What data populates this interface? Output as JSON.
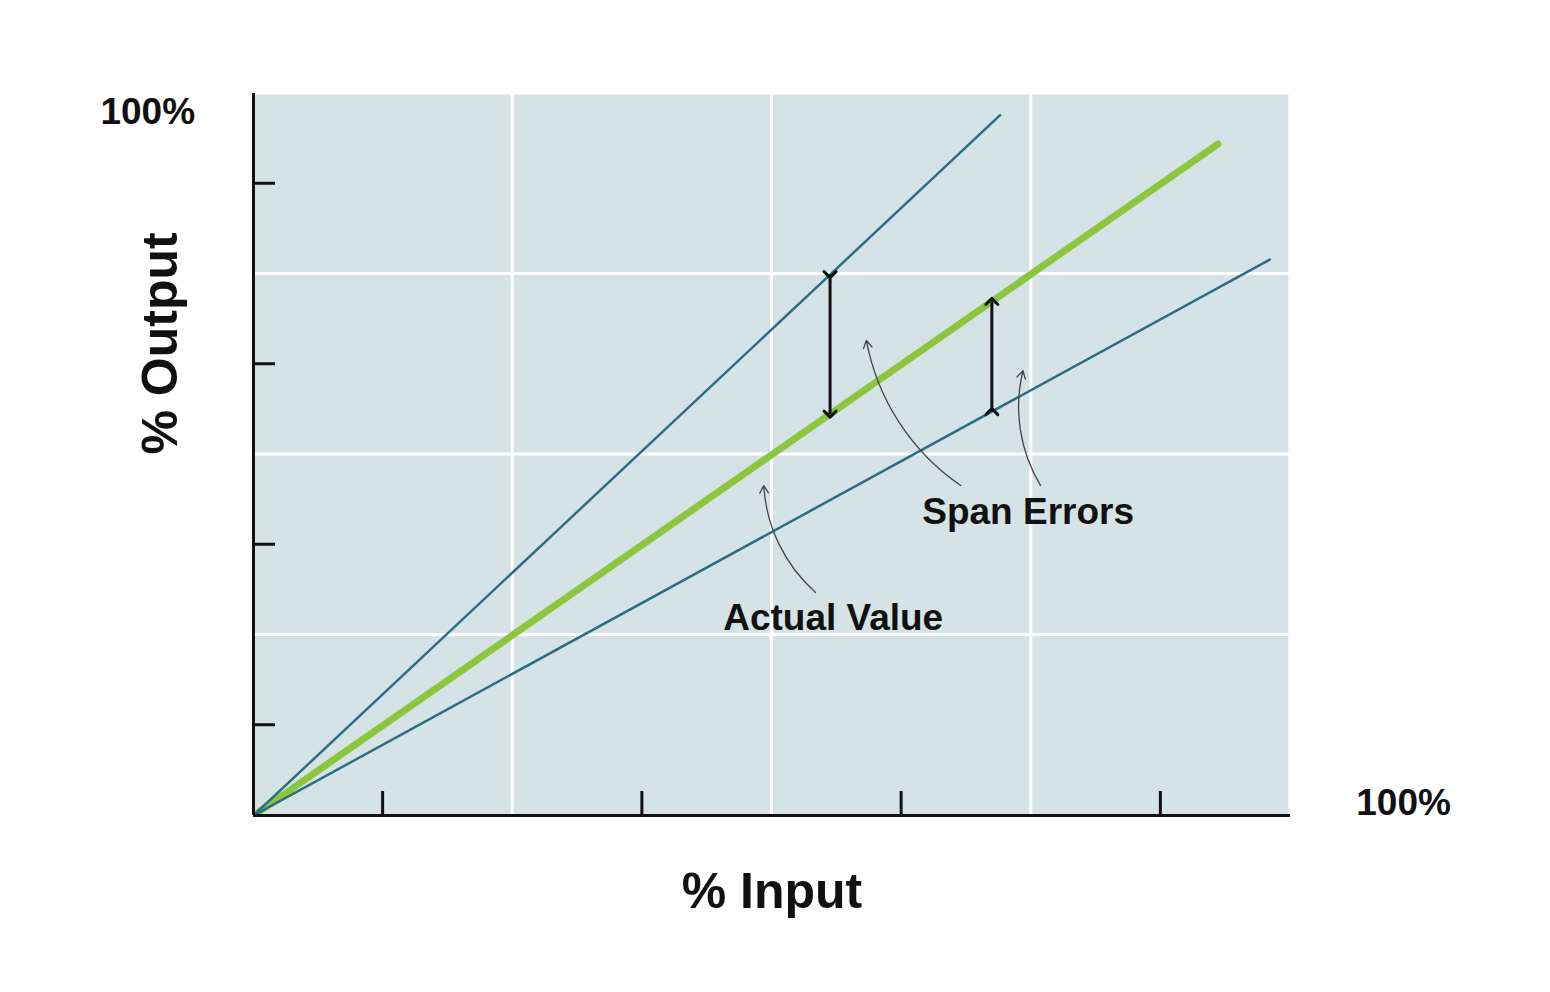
{
  "chart_data": {
    "type": "line",
    "x_label": "% Input",
    "y_label": "% Output",
    "xlim": [
      0,
      100
    ],
    "ylim": [
      0,
      100
    ],
    "xticks": [
      12.5,
      25,
      37.5,
      50,
      62.5,
      75,
      87.5,
      100
    ],
    "yticks": [
      12.5,
      25,
      37.5,
      50,
      62.5,
      75,
      87.5,
      100
    ],
    "tick_labels": false,
    "grid": true,
    "series": [
      {
        "color": "#8cc63f",
        "x": [
          0,
          93
        ],
        "values": [
          0,
          93
        ]
      },
      {
        "color": "#2a6f82",
        "x": [
          0,
          72
        ],
        "values": [
          0,
          97
        ]
      },
      {
        "color": "#2a6f82",
        "x": [
          0,
          98
        ],
        "values": [
          0,
          77
        ]
      }
    ],
    "span_error_x": [
      55.6,
      71.2
    ],
    "annotations": [
      {
        "text": "Span Errors",
        "x": 74.7,
        "y": 42.0,
        "arrows": [
          [
            68.2,
            45.7,
            59.1,
            65.8
          ],
          [
            75.9,
            45.7,
            74.2,
            61.6
          ]
        ]
      },
      {
        "text": "Actual Value",
        "x": 55.9,
        "y": 27.3,
        "arrows": [
          [
            54.2,
            30.9,
            49.2,
            45.7
          ]
        ]
      },
      {
        "text": "100%",
        "x": -10.2,
        "y": 97.4
      },
      {
        "text": "100%",
        "x": 110.9,
        "y": 1.7
      }
    ]
  }
}
